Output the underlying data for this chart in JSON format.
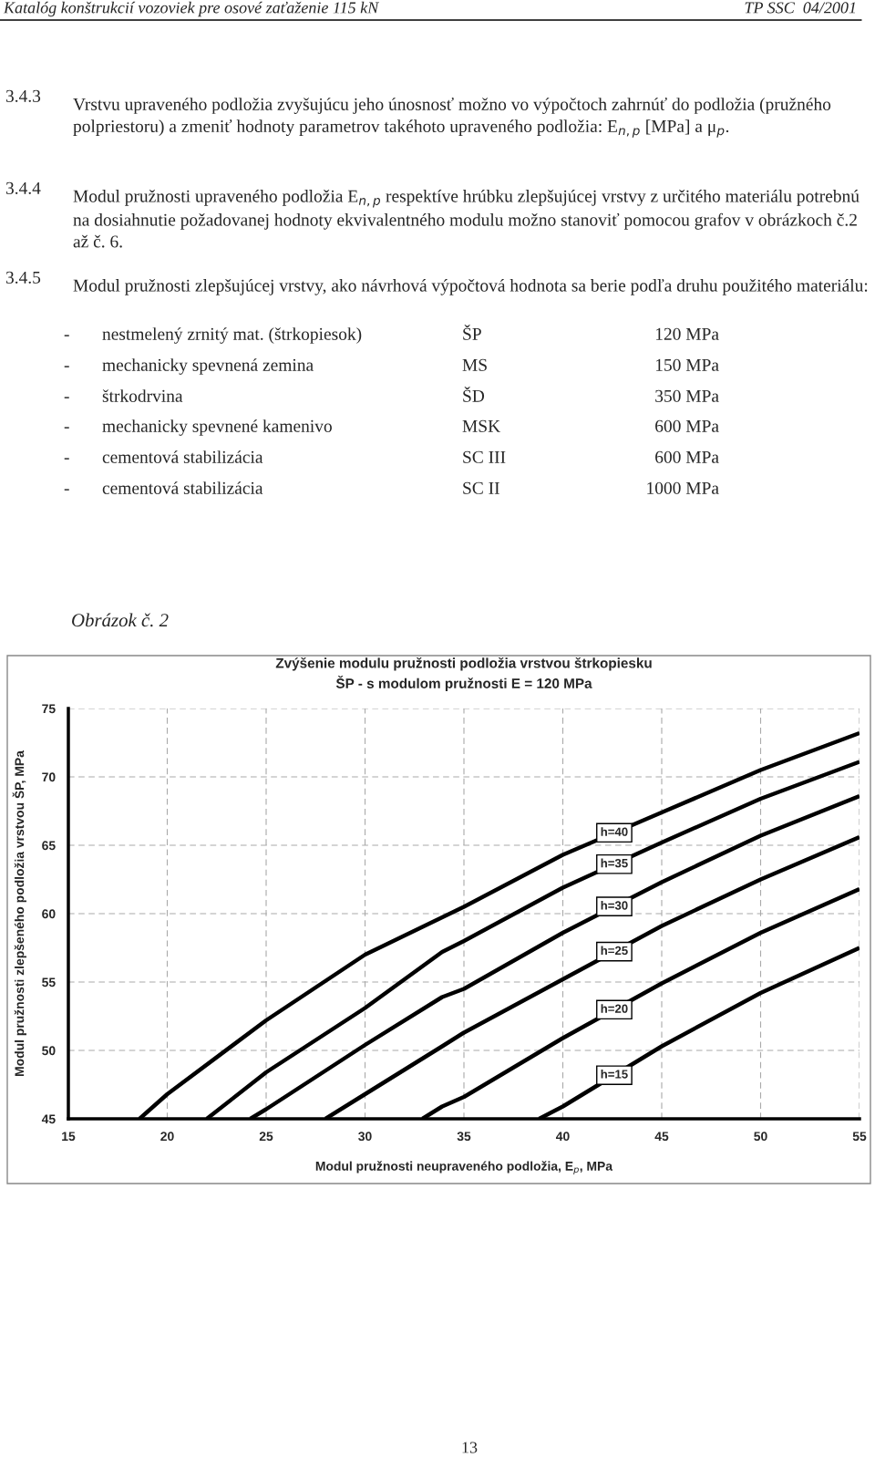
{
  "chart_data": {
    "type": "line",
    "title": "Zvýšenie modulu pružnosti podložia vrstvou štrkopiesku\nŠP - s modulom pružnosti E = 120 MPa",
    "xlabel": "Modul pružnosti neupraveného podložia, E$_{p}$, MPa",
    "ylabel": "Modul pružnosti zlepšeného podložia vrstvou ŠP, MPa",
    "xlim": [
      15,
      55
    ],
    "xticks": [
      15,
      20,
      25,
      30,
      35,
      40,
      45,
      50,
      55
    ],
    "ylim": [
      45,
      75
    ],
    "yticks": [
      45,
      50,
      55,
      60,
      65,
      70,
      75
    ],
    "grid": true,
    "legend": false,
    "marker": "none",
    "line_style": "solid",
    "series": [
      {
        "name": "h=40",
        "color": "#000000",
        "x": [
          18.6,
          20,
          25,
          30,
          35,
          40,
          45,
          50,
          55
        ],
        "values": [
          45,
          46.8,
          52.2,
          57.0,
          60.5,
          64.3,
          67.4,
          70.5,
          73.2
        ]
      },
      {
        "name": "h=35",
        "color": "#000000",
        "x": [
          22.0,
          25,
          30,
          33.9,
          35,
          40,
          45,
          50,
          55
        ],
        "values": [
          45,
          48.4,
          53.1,
          57.2,
          58.0,
          61.9,
          65.2,
          68.4,
          71.1
        ]
      },
      {
        "name": "h=30",
        "color": "#000000",
        "x": [
          24.2,
          25,
          30,
          33.9,
          35,
          40,
          45,
          50,
          55
        ],
        "values": [
          45,
          45.7,
          50.4,
          53.9,
          54.5,
          58.6,
          62.3,
          65.7,
          68.6
        ]
      },
      {
        "name": "h=25",
        "color": "#000000",
        "x": [
          28.0,
          30,
          33.9,
          35,
          40,
          45,
          50,
          55
        ],
        "values": [
          45,
          46.8,
          50.3,
          51.3,
          55.2,
          59.1,
          62.5,
          65.6
        ]
      },
      {
        "name": "h=20",
        "color": "#000000",
        "x": [
          32.9,
          33.9,
          35,
          40,
          45,
          50,
          55
        ],
        "values": [
          45,
          45.9,
          46.6,
          50.9,
          54.9,
          58.6,
          61.8
        ]
      },
      {
        "name": "h=15",
        "color": "#000000",
        "x": [
          38.8,
          40,
          45,
          50,
          55
        ],
        "values": [
          45,
          45.9,
          50.3,
          54.2,
          57.5
        ]
      }
    ],
    "annotations": [
      "Katalóg konštrukcií vozoviek pre osové zaťaženie 115 kN",
      "TP SSC  04/2001",
      "3.4.3",
      "Vrstvu upraveného podložia zvyšujúcu jeho únosnosť možno vo výpočtoch zahrnúť do podložia (pružného polpriestoru) a zmeniť hodnoty parametrov takéhoto upraveného podložia: E$_{n,p}$ [MPa] a μ$_{p}$.",
      "3.4.4",
      "Modul pružnosti upraveného podložia E$_{n,p}$ respektíve hrúbku zlepšujúcej vrstvy z určitého materiálu potrebnú na dosiahnutie požadovanej hodnoty ekvivalentného modulu možno stanoviť pomocou grafov v obrázkoch č.2 až č. 6.",
      "3.4.5",
      "Modul pružnosti zlepšujúcej vrstvy, ako návrhová výpočtová hodnota sa berie podľa druhu použitého materiálu:",
      "-",
      "nestmelený zrnitý mat. (štrkopiesok)",
      "ŠP",
      "120 MPa",
      "-",
      "mechanicky spevnená zemina",
      "MS",
      "150 MPa",
      "-",
      "štrkodrvina",
      "ŠD",
      "350 MPa",
      "-",
      "mechanicky spevnené kamenivo",
      "MSK",
      "600 MPa",
      "-",
      "cementová stabilizácia",
      "SC III",
      "600 MPa",
      "-",
      "cementová stabilizácia",
      "SC II",
      "1000 MPa",
      "Obrázok č. 2",
      "13"
    ]
  }
}
